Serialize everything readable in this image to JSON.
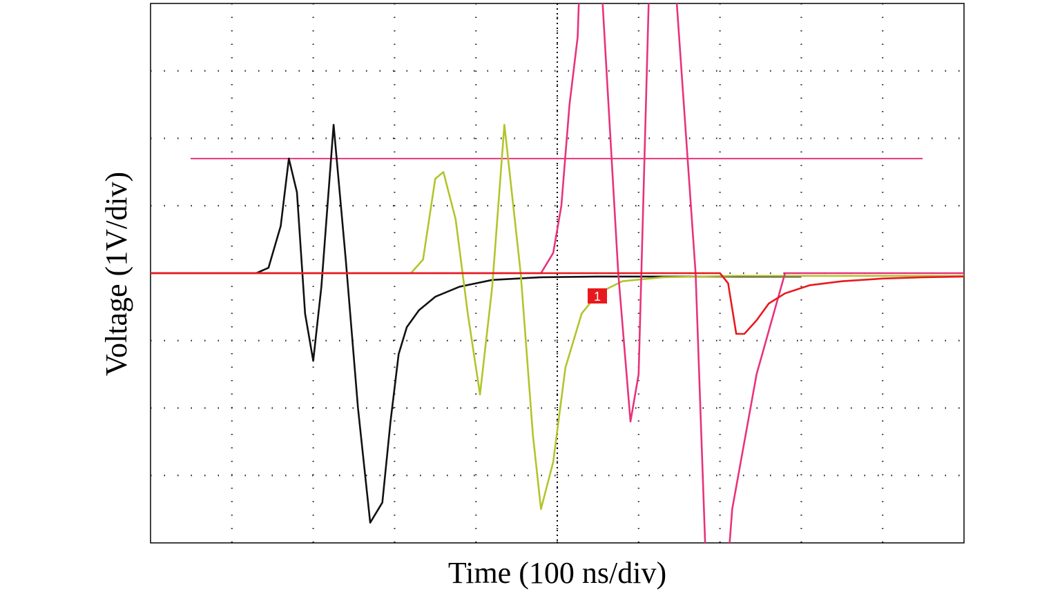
{
  "chart_data": {
    "type": "line",
    "title": "",
    "xlabel": "Time (100 ns/div)",
    "ylabel": "Voltage (1V/div)",
    "xlim": [
      0,
      10
    ],
    "ylim": [
      -4,
      4
    ],
    "grid": true,
    "grid_divisions": {
      "x": 10,
      "y": 8
    },
    "trigger_marker": "1",
    "threshold_level": 1.7,
    "colors": {
      "series_black": "#111111",
      "series_yellow": "#b3c42a",
      "series_magenta": "#e8327a",
      "series_red": "#e8191e",
      "threshold": "#e8327a",
      "marker": "#e8191e"
    },
    "series": [
      {
        "color_key": "series_black",
        "x": [
          0.0,
          1.3,
          1.45,
          1.6,
          1.7,
          1.8,
          1.9,
          2.0,
          2.1,
          2.25,
          2.4,
          2.55,
          2.7,
          2.85,
          2.95,
          3.05,
          3.15,
          3.3,
          3.5,
          3.8,
          4.2,
          4.8,
          5.5,
          6.5,
          7.5,
          8.0
        ],
        "y": [
          0.0,
          0.0,
          0.08,
          0.7,
          1.7,
          1.2,
          -0.6,
          -1.3,
          -0.2,
          2.2,
          0.2,
          -2.0,
          -3.7,
          -3.4,
          -2.2,
          -1.2,
          -0.8,
          -0.55,
          -0.35,
          -0.2,
          -0.1,
          -0.06,
          -0.05,
          -0.05,
          -0.05,
          -0.05
        ]
      },
      {
        "color_key": "series_yellow",
        "x": [
          0.0,
          3.2,
          3.35,
          3.5,
          3.6,
          3.75,
          3.9,
          4.05,
          4.2,
          4.35,
          4.55,
          4.7,
          4.8,
          4.95,
          5.1,
          5.3,
          5.5,
          5.8,
          6.3,
          7.2,
          8.0,
          10.0
        ],
        "y": [
          0.0,
          0.0,
          0.2,
          1.4,
          1.5,
          0.8,
          -0.6,
          -1.8,
          -0.2,
          2.2,
          0.0,
          -2.4,
          -3.5,
          -2.8,
          -1.4,
          -0.6,
          -0.3,
          -0.12,
          -0.06,
          -0.04,
          -0.04,
          -0.04
        ]
      },
      {
        "color_key": "series_magenta",
        "x": [
          0.0,
          4.8,
          4.95,
          5.05,
          5.15,
          5.25,
          5.3,
          5.5,
          5.75,
          5.9,
          6.0,
          6.15,
          6.4,
          6.7,
          6.85,
          7.05,
          7.15,
          7.45,
          7.8,
          10.0
        ],
        "y": [
          0.0,
          0.0,
          0.3,
          1.0,
          2.5,
          3.5,
          5.2,
          5.2,
          0.0,
          -2.2,
          -1.5,
          5.2,
          5.2,
          0.0,
          -5.1,
          -5.1,
          -3.5,
          -1.5,
          0.0,
          0.0
        ]
      },
      {
        "color_key": "series_red",
        "x": [
          0.0,
          6.0,
          6.5,
          7.0,
          7.1,
          7.2,
          7.3,
          7.45,
          7.6,
          7.8,
          8.1,
          8.5,
          9.0,
          9.5,
          10.0
        ],
        "y": [
          0.0,
          0.0,
          0.0,
          0.0,
          -0.15,
          -0.9,
          -0.9,
          -0.7,
          -0.45,
          -0.3,
          -0.18,
          -0.12,
          -0.08,
          -0.06,
          -0.05
        ]
      }
    ]
  }
}
